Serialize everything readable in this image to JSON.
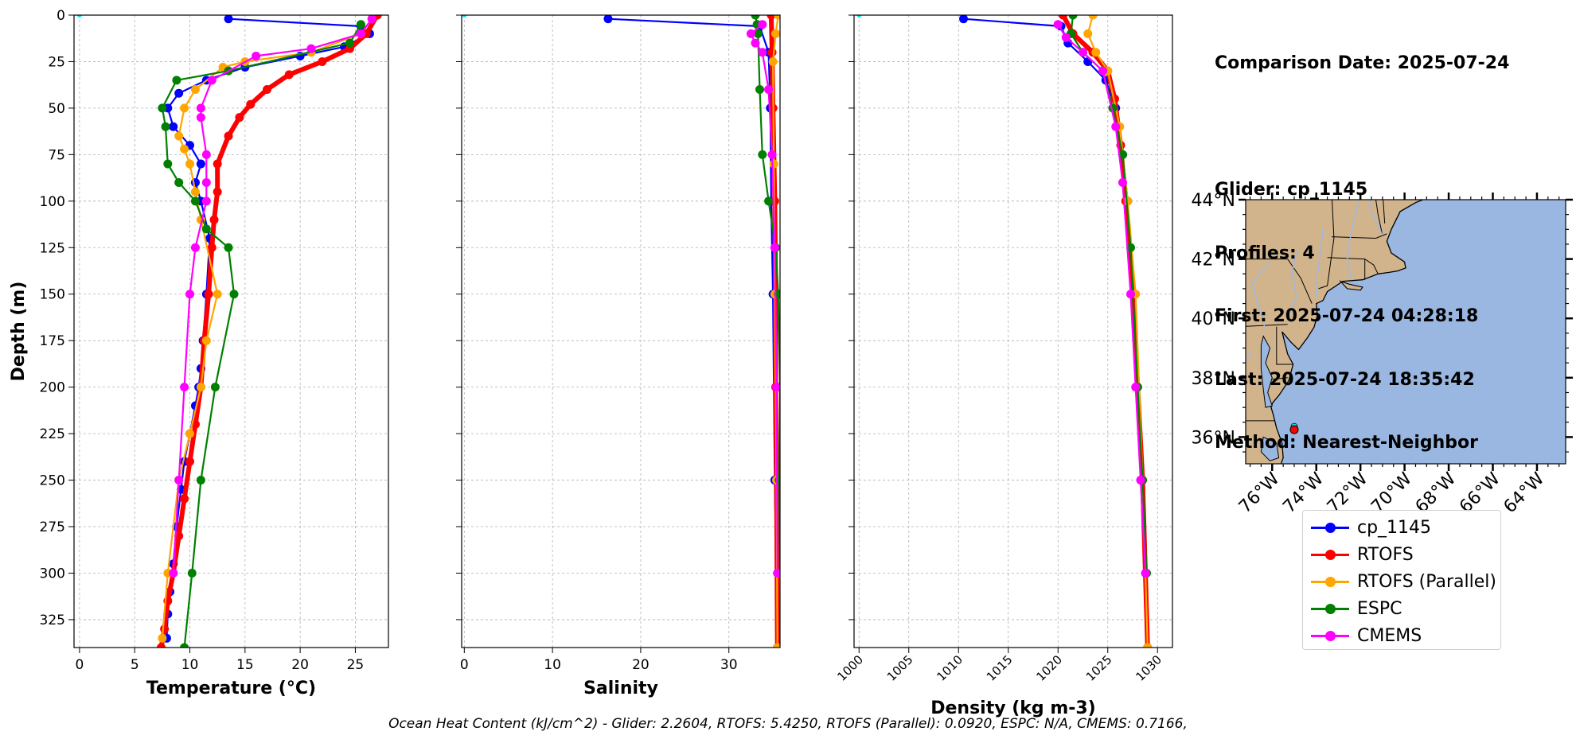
{
  "info": {
    "comparison_date": "Comparison Date: 2025-07-24",
    "glider": "Glider: cp_1145",
    "profiles": "Profiles: 4",
    "first": "First: 2025-07-24 04:28:18",
    "last": "Last: 2025-07-24 18:35:42",
    "method": "Method: Nearest-Neighbor"
  },
  "caption": "Ocean Heat Content (kJ/cm^2) - Glider: 2.2604,  RTOFS: 5.4250,  RTOFS (Parallel): 0.0920,  ESPC: N/A,  CMEMS: 0.7166,",
  "colors": {
    "cp_1145": "#0000ff",
    "RTOFS": "#ff0000",
    "RTOFS (Parallel)": "#ffa500",
    "ESPC": "#008000",
    "CMEMS": "#ff00ff",
    "individual_profiles": "#00e5ff",
    "land": "#d2b48c",
    "ocean": "#99b7e1",
    "rivers": "#9fb8e0"
  },
  "legend": [
    "cp_1145",
    "RTOFS",
    "RTOFS (Parallel)",
    "ESPC",
    "CMEMS"
  ],
  "chart_data": [
    {
      "type": "line",
      "xlabel": "Temperature (°C)",
      "ylabel": "Depth (m)",
      "xlim": [
        -0.5,
        28
      ],
      "ylim": [
        340,
        0
      ],
      "xticks": [
        0,
        5,
        10,
        15,
        20,
        25
      ],
      "yticks": [
        0,
        25,
        50,
        75,
        100,
        125,
        150,
        175,
        200,
        225,
        250,
        275,
        300,
        325
      ],
      "grid": true,
      "series": [
        {
          "name": "cp_1145",
          "x": [
            13.5,
            25.5,
            26.3,
            24.0,
            20.0,
            15.0,
            11.5,
            9.0,
            8.0,
            8.5,
            10.0,
            11.0,
            10.5,
            11.0,
            11.8,
            11.5,
            11.2,
            11.0,
            10.8,
            10.5,
            10.0,
            9.5,
            9.2,
            8.8,
            8.5,
            8.2,
            8.0,
            7.9
          ],
          "y": [
            2,
            6,
            10,
            17,
            22,
            28,
            35,
            42,
            50,
            60,
            70,
            80,
            90,
            100,
            120,
            150,
            175,
            190,
            200,
            210,
            225,
            240,
            255,
            275,
            295,
            310,
            322,
            335
          ]
        },
        {
          "name": "RTOFS",
          "x": [
            27,
            26,
            24.5,
            22,
            19,
            17,
            15.5,
            14.5,
            13.5,
            12.5,
            12.5,
            12.2,
            12.0,
            11.7,
            11.3,
            11.0,
            10.5,
            10.0,
            9.5,
            9.0,
            8.5,
            8.0,
            7.7,
            7.4
          ],
          "y": [
            0,
            10,
            18,
            25,
            32,
            40,
            48,
            55,
            65,
            80,
            95,
            110,
            125,
            150,
            175,
            200,
            220,
            240,
            260,
            280,
            300,
            315,
            330,
            340
          ]
        },
        {
          "name": "RTOFS (Parallel)",
          "x": [
            26.5,
            25.5,
            21.0,
            15.0,
            13.0,
            10.5,
            9.5,
            9.0,
            9.5,
            10.0,
            10.5,
            11.0,
            12.5,
            11.5,
            11.0,
            10.0,
            9.0,
            8.0,
            7.5
          ],
          "y": [
            2,
            10,
            20,
            25,
            28,
            40,
            50,
            65,
            72,
            80,
            95,
            110,
            150,
            175,
            200,
            225,
            250,
            300,
            335
          ]
        },
        {
          "name": "ESPC",
          "x": [
            25.5,
            24.5,
            13.5,
            8.8,
            7.5,
            7.8,
            8.0,
            9.0,
            10.5,
            11.5,
            13.5,
            14.0,
            12.3,
            11.0,
            10.2,
            9.5
          ],
          "y": [
            5,
            15,
            30,
            35,
            50,
            60,
            80,
            90,
            100,
            115,
            125,
            150,
            200,
            250,
            300,
            340
          ]
        },
        {
          "name": "CMEMS",
          "x": [
            26.5,
            25.5,
            21.0,
            16.0,
            12.0,
            11.0,
            11.0,
            11.5,
            11.5,
            11.5,
            10.5,
            10.0,
            9.5,
            9.0,
            8.5
          ],
          "y": [
            2,
            10,
            18,
            22,
            35,
            50,
            55,
            75,
            90,
            100,
            125,
            150,
            200,
            250,
            300
          ]
        }
      ]
    },
    {
      "type": "line",
      "xlabel": "Salinity",
      "xlim": [
        -0.3,
        35.8
      ],
      "ylim": [
        340,
        0
      ],
      "xticks": [
        0,
        10,
        20,
        30
      ],
      "grid": true,
      "series": [
        {
          "name": "cp_1145",
          "x": [
            16.3,
            33.5,
            34.5,
            34.7,
            34.8,
            35.0,
            35.2,
            35.5
          ],
          "y": [
            2,
            6,
            20,
            50,
            100,
            150,
            250,
            340
          ]
        },
        {
          "name": "RTOFS",
          "x": [
            34.8,
            34.9,
            35.0,
            35.2,
            35.3,
            35.3,
            35.4,
            35.5
          ],
          "y": [
            0,
            20,
            50,
            100,
            150,
            200,
            250,
            340
          ]
        },
        {
          "name": "RTOFS (Parallel)",
          "x": [
            35.6,
            35.3,
            35.0,
            35.1,
            35.2,
            35.4,
            35.5
          ],
          "y": [
            0,
            10,
            25,
            80,
            150,
            250,
            340
          ]
        },
        {
          "name": "ESPC",
          "x": [
            33.0,
            33.2,
            33.3,
            33.5,
            33.8,
            34.5,
            35.3,
            35.6,
            35.8,
            35.7,
            35.8
          ],
          "y": [
            0,
            5,
            10,
            40,
            75,
            100,
            125,
            150,
            200,
            250,
            300
          ]
        },
        {
          "name": "CMEMS",
          "x": [
            33.8,
            32.5,
            33.0,
            33.8,
            34.5,
            34.9,
            35.2,
            35.4,
            35.5
          ],
          "y": [
            5,
            10,
            15,
            20,
            40,
            75,
            125,
            200,
            300
          ]
        }
      ]
    },
    {
      "type": "line",
      "xlabel": "Density (kg m-3)",
      "xlim": [
        999.5,
        1031.5
      ],
      "ylim": [
        340,
        0
      ],
      "xticks": [
        1000,
        1005,
        1010,
        1015,
        1020,
        1025,
        1030
      ],
      "grid": true,
      "series": [
        {
          "name": "cp_1145",
          "x": [
            1010.5,
            1020.3,
            1021.0,
            1023.0,
            1024.8,
            1025.8,
            1026.5,
            1027.0,
            1027.5,
            1028.0,
            1028.4,
            1028.8,
            1029.0
          ],
          "y": [
            2,
            6,
            15,
            25,
            35,
            50,
            75,
            100,
            150,
            200,
            250,
            300,
            340
          ]
        },
        {
          "name": "RTOFS",
          "x": [
            1020.5,
            1021.5,
            1023.5,
            1025.0,
            1025.7,
            1026.3,
            1026.8,
            1027.5,
            1028.0,
            1028.5,
            1029.0
          ],
          "y": [
            0,
            10,
            20,
            30,
            45,
            70,
            100,
            150,
            200,
            250,
            340
          ]
        },
        {
          "name": "RTOFS (Parallel)",
          "x": [
            1023.5,
            1023.0,
            1023.8,
            1025.0,
            1026.2,
            1027.0,
            1027.8,
            1028.5,
            1029.0
          ],
          "y": [
            0,
            10,
            20,
            30,
            60,
            100,
            150,
            250,
            340
          ]
        },
        {
          "name": "ESPC",
          "x": [
            1021.5,
            1021.3,
            1022.5,
            1024.5,
            1025.5,
            1026.5,
            1027.3,
            1028.0,
            1028.5,
            1028.9
          ],
          "y": [
            0,
            10,
            20,
            30,
            50,
            75,
            125,
            200,
            250,
            300
          ]
        },
        {
          "name": "CMEMS",
          "x": [
            1020.0,
            1020.8,
            1022.5,
            1024.5,
            1025.8,
            1026.5,
            1027.3,
            1027.8,
            1028.3,
            1028.8
          ],
          "y": [
            5,
            12,
            20,
            30,
            60,
            90,
            150,
            200,
            250,
            300
          ]
        }
      ]
    },
    {
      "type": "map",
      "lat_range": [
        35.1,
        44.0
      ],
      "lon_range": [
        -77.2,
        -62.7
      ],
      "lat_ticks": [
        "44°N",
        "42°N",
        "40°N",
        "38°N",
        "36°N"
      ],
      "lon_ticks": [
        "76°W",
        "74°W",
        "72°W",
        "70°W",
        "68°W",
        "66°W",
        "64°W"
      ],
      "markers": [
        {
          "lat": 36.25,
          "lon": -75.0,
          "color": "#ff0000"
        }
      ]
    }
  ]
}
